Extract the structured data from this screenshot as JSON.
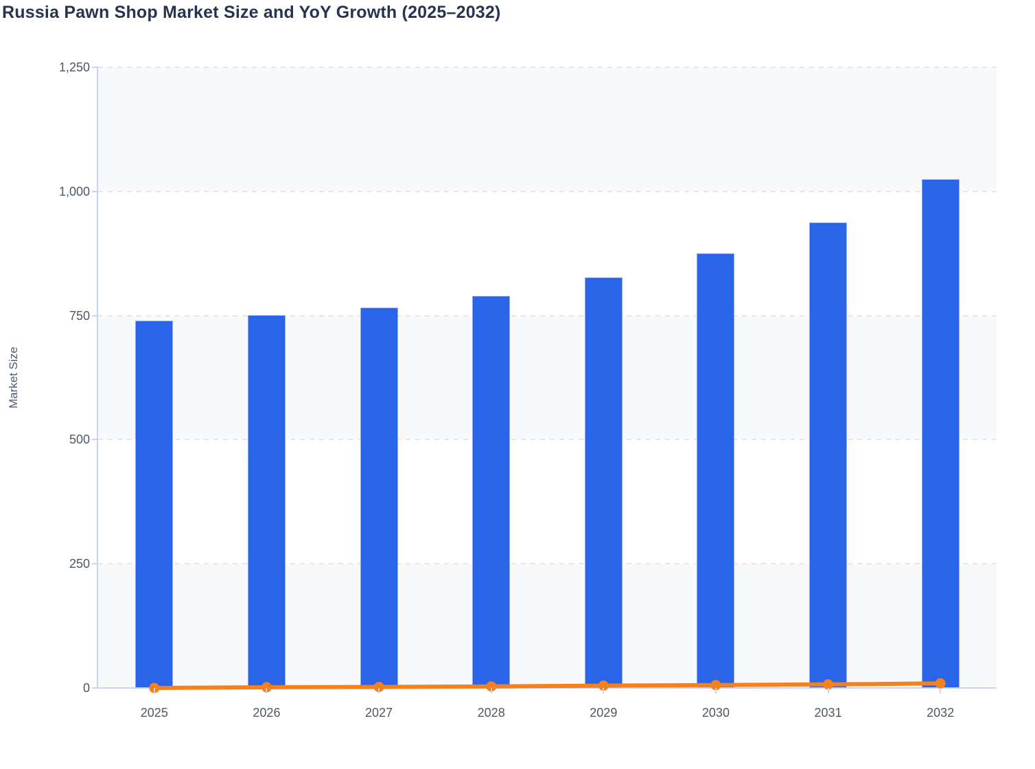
{
  "title": "Russia Pawn Shop Market Size and YoY Growth (2025–2032)",
  "y_axis": {
    "title": "Market Size",
    "range": [
      0,
      1250
    ],
    "ticks": [
      {
        "label": "0",
        "value": 0
      },
      {
        "label": "250",
        "value": 250
      },
      {
        "label": "500",
        "value": 500
      },
      {
        "label": "750",
        "value": 750
      },
      {
        "label": "1,000",
        "value": 1000
      },
      {
        "label": "1,250",
        "value": 1250
      }
    ]
  },
  "x_axis": {
    "categories": [
      "2025",
      "2026",
      "2027",
      "2028",
      "2029",
      "2030",
      "2031",
      "2032"
    ]
  },
  "chart_data": {
    "type": "bar",
    "title": "Russia Pawn Shop Market Size and YoY Growth (2025–2032)",
    "xlabel": "",
    "ylabel": "Market Size",
    "ylim": [
      0,
      1250
    ],
    "ytick_step": 250,
    "categories": [
      2025,
      2026,
      2027,
      2028,
      2029,
      2030,
      2031,
      2032
    ],
    "series": [
      {
        "name": "Market Size",
        "type": "bar",
        "color": "#2a64e8",
        "values": [
          740,
          751,
          766,
          790,
          827,
          875,
          938,
          1025
        ]
      },
      {
        "name": "YoY Growth",
        "type": "line",
        "color": "#f5811e",
        "values": [
          0,
          1.5,
          2.0,
          3.1,
          4.7,
          5.8,
          7.2,
          9.3
        ],
        "axis": "shared with Market Size axis, so the line hugs the zero baseline"
      }
    ],
    "grid": "horizontal dashed lines at each 250 step",
    "legend": "none",
    "background_bands": "alternating light fill between tick intervals starting at 0–250"
  },
  "colors": {
    "bar": "#2a64e8",
    "bar_border": "#93aaee",
    "line": "#f5811e",
    "band": "#f8f9fb",
    "grid": "#e5e6e9",
    "axis": "#c9d3ee",
    "tick_text": "#4d5766",
    "title_text": "#263450"
  }
}
